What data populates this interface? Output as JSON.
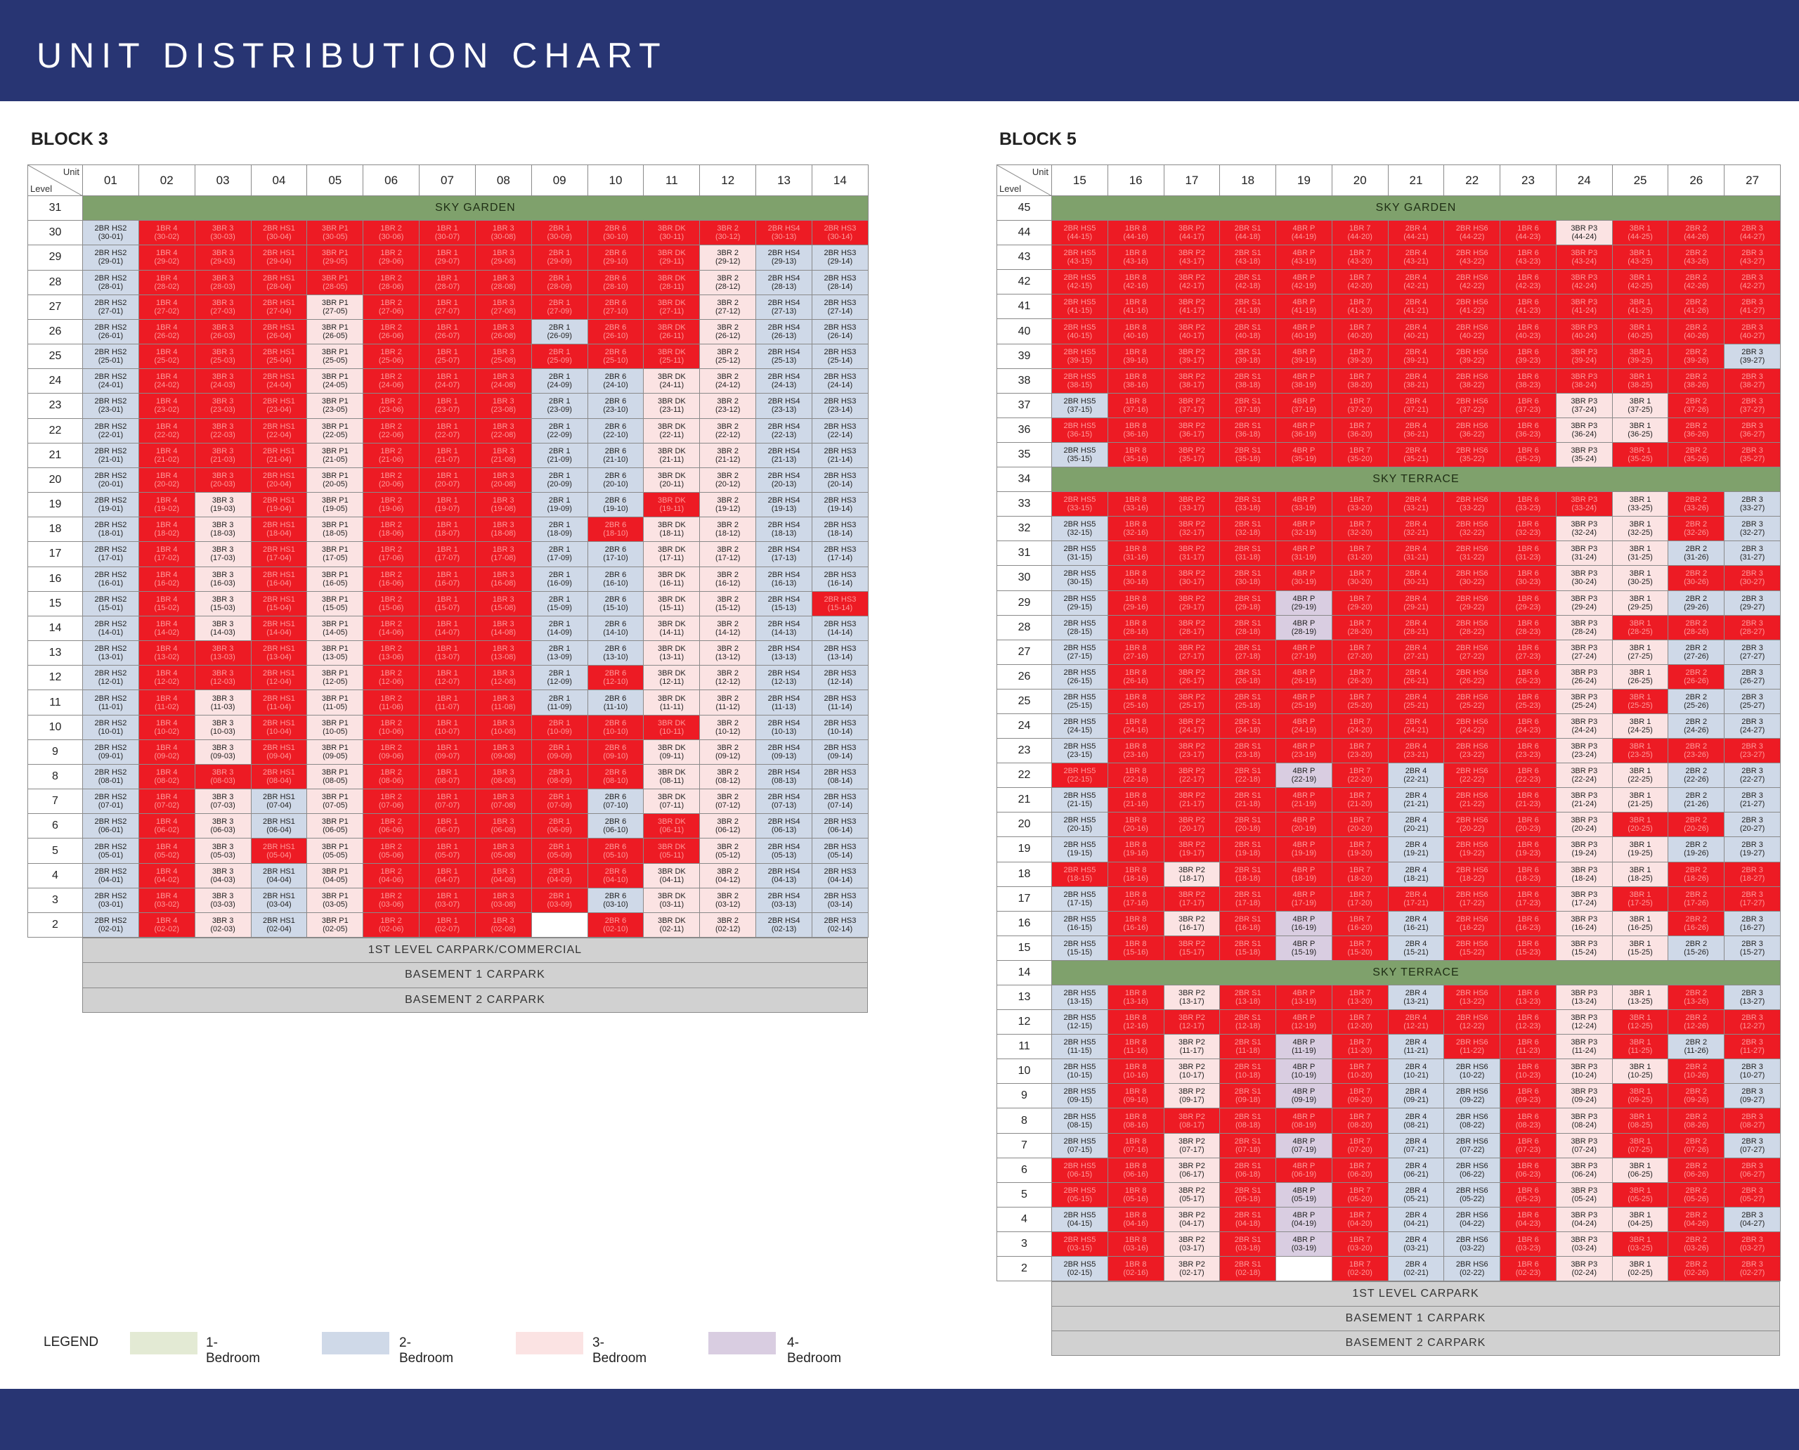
{
  "page_title": "UNIT DISTRIBUTION CHART",
  "corner": {
    "unit": "Unit",
    "level": "Level"
  },
  "colors": {
    "header": "#283573",
    "sold": "#ed1b24",
    "bed1": "#e3ead4",
    "bed2": "#cfd9e8",
    "bed3": "#fbe3e3",
    "bed4": "#d9cde1",
    "band": "#7fa16c"
  },
  "legend": {
    "title": "LEGEND",
    "items": [
      {
        "key": "b1",
        "label": "1-Bedroom",
        "color": "#e3ead4"
      },
      {
        "key": "b2",
        "label": "2-Bedroom",
        "color": "#cfd9e8"
      },
      {
        "key": "b3",
        "label": "3-Bedroom",
        "color": "#fbe3e3"
      },
      {
        "key": "b4",
        "label": "4-Bedroom",
        "color": "#d9cde1"
      }
    ]
  },
  "blocks": [
    {
      "id": "block3",
      "title": "BLOCK 3",
      "units": [
        "01",
        "02",
        "03",
        "04",
        "05",
        "06",
        "07",
        "08",
        "09",
        "10",
        "11",
        "12",
        "13",
        "14"
      ],
      "types": [
        "2BR HS2",
        "1BR 4",
        "3BR 3",
        "2BR HS1",
        "3BR P1",
        "1BR 2",
        "1BR 1",
        "1BR 3",
        "2BR 1",
        "2BR 6",
        "3BR DK",
        "3BR 2",
        "2BR HS4",
        "2BR HS3"
      ],
      "classes": [
        "b2",
        "b1",
        "b3",
        "b2",
        "b3",
        "b1",
        "b1",
        "b1",
        "b2",
        "b2",
        "b3",
        "b3",
        "b2",
        "b2"
      ],
      "bands": [
        {
          "level": "31",
          "label": "SKY GARDEN"
        }
      ],
      "levels": [
        "30",
        "29",
        "28",
        "27",
        "26",
        "25",
        "24",
        "23",
        "22",
        "21",
        "20",
        "19",
        "18",
        "17",
        "16",
        "15",
        "14",
        "13",
        "12",
        "11",
        "10",
        "9",
        "8",
        "7",
        "6",
        "5",
        "4",
        "3",
        "2"
      ],
      "avail": [
        "A.........S...",
        "A..........AAA",
        "A..........AAA",
        "A...A......AAA",
        "A...A...A..AAA",
        "A...A......AAA",
        "A...A...AAAAAA",
        "A...A...AAAAAA",
        "A...A...AAAAAA",
        "A...A...AAAAAA",
        "A...A...AAAAAA",
        "A.A.A...AA.AAA",
        "A.A.A...A.AAAA",
        "A.A.A...AAAAAA",
        "A.A.A...AAAAAA",
        "A.A.A...AAAAA.",
        "A.A.A...AAAAAA",
        "A...A...AAAAAA",
        "A...A...A.AAAA",
        "A.A.A...AAAAAA",
        "A.A.A......AAA",
        "A.A.A.....AAAA",
        "A...A.....AAAA",
        "A.AAA....AAAAA",
        "A.AAA....A.AAA",
        "A.A.A......AAA",
        "A.AAA.....AAAA",
        "A.AAA....AAAAA",
        "A.AAA...X.AAAA"
      ],
      "base": [
        "1ST LEVEL CARPARK/COMMERCIAL",
        "BASEMENT 1 CARPARK",
        "BASEMENT 2 CARPARK"
      ]
    },
    {
      "id": "block5",
      "title": "BLOCK 5",
      "units": [
        "15",
        "16",
        "17",
        "18",
        "19",
        "20",
        "21",
        "22",
        "23",
        "24",
        "25",
        "26",
        "27"
      ],
      "types": [
        "2BR HS5",
        "1BR 8",
        "3BR P2",
        "2BR S1",
        "4BR P",
        "1BR 7",
        "2BR 4",
        "2BR HS6",
        "1BR 6",
        "3BR P3",
        "3BR 1",
        "2BR 2",
        "2BR 3"
      ],
      "classes": [
        "b2",
        "b1",
        "b3",
        "b2",
        "b4",
        "b1",
        "b2",
        "b2",
        "b1",
        "b3",
        "b3",
        "b2",
        "b2"
      ],
      "bands": [
        {
          "level": "45",
          "label": "SKY GARDEN"
        },
        {
          "level": "34",
          "label": "SKY TERRACE"
        },
        {
          "level": "14",
          "label": "SKY TERRACE"
        }
      ],
      "levels": [
        "44",
        "43",
        "42",
        "41",
        "40",
        "39",
        "38",
        "37",
        "36",
        "35",
        "33",
        "32",
        "31",
        "30",
        "29",
        "28",
        "27",
        "26",
        "25",
        "24",
        "23",
        "22",
        "21",
        "20",
        "19",
        "18",
        "17",
        "16",
        "15",
        "13",
        "12",
        "11",
        "10",
        "9",
        "8",
        "7",
        "6",
        "5",
        "4",
        "3",
        "2"
      ],
      "avail": [
        ".........A...",
        ".............",
        ".............",
        ".............",
        ".............",
        "............A",
        ".............",
        "A........AA..",
        ".........AA..",
        "A........A...",
        "..........A.A",
        "A........AA.A",
        "A........AAAA",
        "A........AA..",
        "A...A....AAAA",
        "A...A....A...",
        "A........AAAA",
        "A........AA.A",
        "A........A.AA",
        "A........AAAA",
        "A........A...",
        "....A.A..AAAA",
        "A.....A..AAAA",
        "A.....A..A..A",
        "A.....A..AAAA",
        "..A...A..AA..",
        "A........A...",
        "A.A.A.A..AA.A",
        "A...A.A..AAAA",
        "A.A...A..AA.A",
        "A........A...",
        "A.A.A.A..A.A.",
        "A.A.A.AA.AA.A",
        "A.A.A.AA.A..A",
        "A.....AA.A...",
        "A.A.A.AA.A..A",
        "..A...AA.AA..",
        "..A.A.AA.A...",
        "A.A.A.AA.AA.A",
        "..A.A.AA.A...",
        "A.A.X.AA.AA.."
      ],
      "base": [
        "1ST LEVEL CARPARK",
        "BASEMENT 1 CARPARK",
        "BASEMENT 2 CARPARK"
      ]
    }
  ]
}
